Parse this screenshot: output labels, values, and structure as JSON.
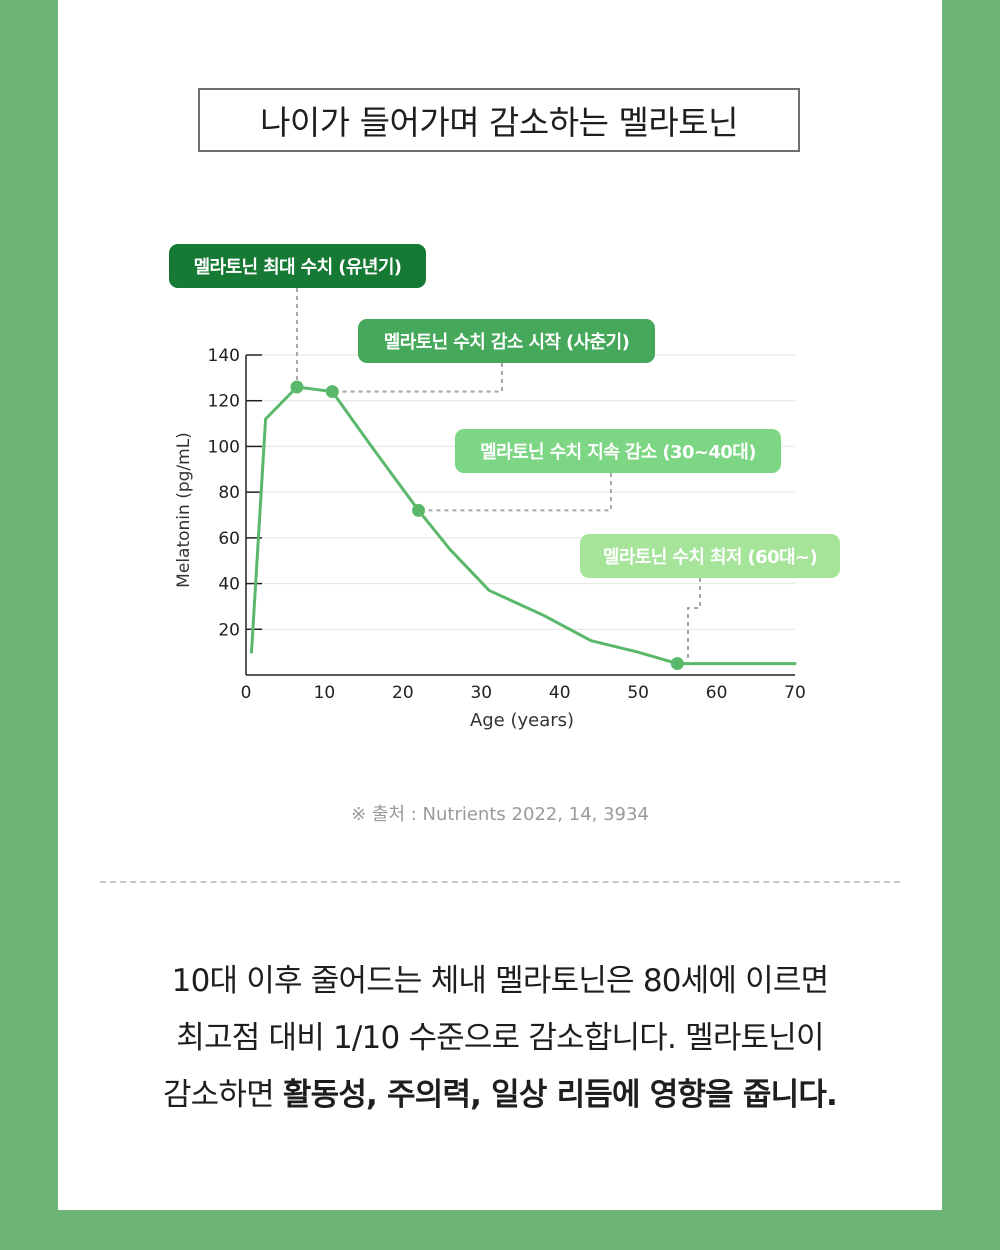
{
  "title": "나이가 들어가며 감소하는 멜라토닌",
  "callouts": {
    "peak": "멜라토닌 최대 수치 (유년기)",
    "start": "멜라토닌 수치 감소 시작 (사춘기)",
    "steady": "멜라토닌 수치 지속 감소 (30~40대)",
    "lowest": "멜라토닌 수치 최저 (60대~)"
  },
  "source": "※ 출처 : Nutrients 2022, 14, 3934",
  "body": {
    "line1": "10대 이후 줄어드는 체내 멜라토닌은 80세에 이르면",
    "line2": "최고점 대비 1/10 수준으로 감소합니다. 멜라토닌이",
    "line3_prefix": "감소하면 ",
    "line3_bold": "활동성, 주의력, 일상 리듬에 영향을 줍니다."
  },
  "colors": {
    "background": "#6db577",
    "line": "#5ab86a",
    "callout_peak": "#177a34",
    "callout_start": "#45a85a",
    "callout_steady": "#7dd684",
    "callout_lowest": "#a6e49a"
  },
  "chart_data": {
    "type": "line",
    "xlabel": "Age (years)",
    "ylabel": "Melatonin (pg/mL)",
    "xlim": [
      0,
      70
    ],
    "ylim": [
      0,
      140
    ],
    "xticks": [
      0,
      10,
      20,
      30,
      40,
      50,
      60,
      70
    ],
    "yticks": [
      20,
      40,
      60,
      80,
      100,
      120,
      140
    ],
    "grid": true,
    "series": [
      {
        "x": [
          0.7,
          2.5,
          6.5,
          11,
          16,
          22,
          26,
          31,
          38,
          44,
          50,
          55,
          60,
          70
        ],
        "values": [
          10,
          112,
          126,
          124,
          100,
          72,
          55,
          37,
          26,
          15,
          10,
          5,
          5,
          5
        ]
      }
    ],
    "highlights": [
      {
        "x": 6.5,
        "y": 126,
        "label": "멜라토닌 최대 수치 (유년기)"
      },
      {
        "x": 11,
        "y": 124,
        "label": "멜라토닌 수치 감소 시작 (사춘기)"
      },
      {
        "x": 22,
        "y": 72,
        "label": "멜라토닌 수치 지속 감소 (30~40대)"
      },
      {
        "x": 55,
        "y": 5,
        "label": "멜라토닌 수치 최저 (60대~)"
      }
    ]
  }
}
